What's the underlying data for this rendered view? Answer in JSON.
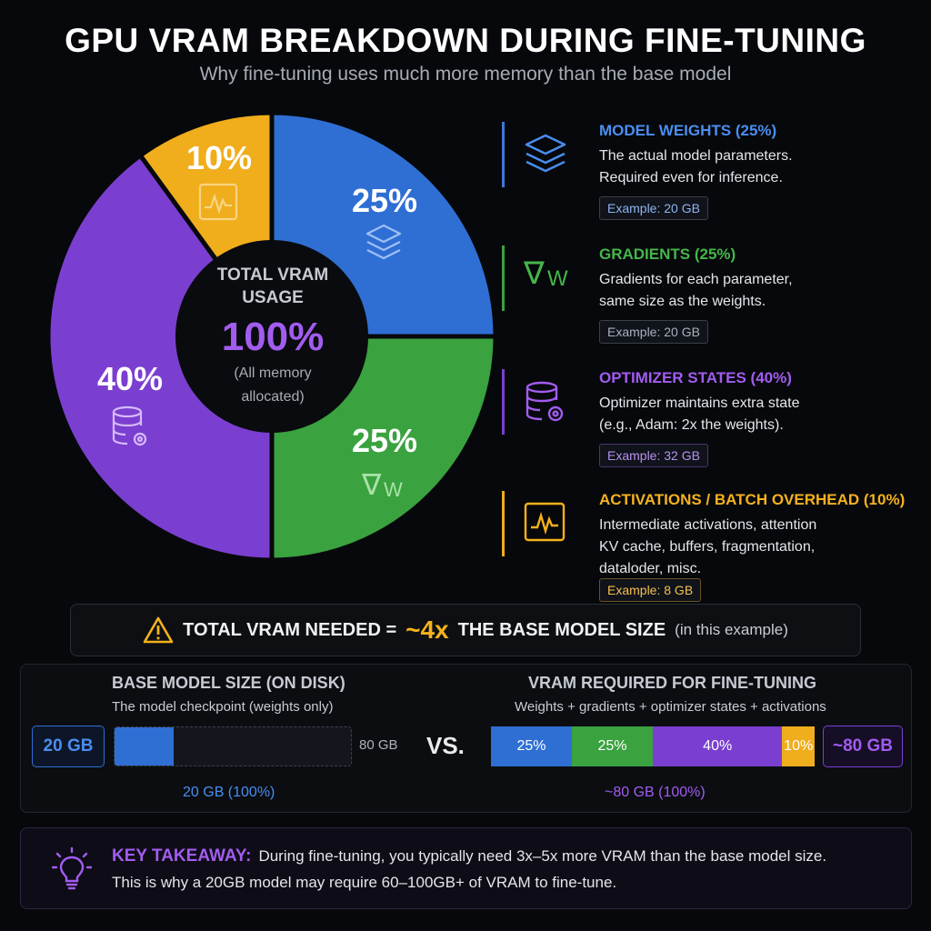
{
  "title": "GPU VRAM BREAKDOWN DURING FINE-TUNING",
  "subtitle": "Why fine-tuning uses much more memory than the base model",
  "center": {
    "title_line1": "TOTAL VRAM",
    "title_line2": "USAGE",
    "value": "100%",
    "note_line1": "(All memory",
    "note_line2": "allocated)"
  },
  "chart_data": {
    "type": "pie",
    "title": "GPU VRAM BREAKDOWN DURING FINE-TUNING",
    "center_total": "100%",
    "slices": [
      {
        "label": "MODEL WEIGHTS",
        "value": 25,
        "display": "25%",
        "color": "#2f6fd4",
        "icon": "layers-icon"
      },
      {
        "label": "GRADIENTS",
        "value": 25,
        "display": "25%",
        "color": "#3aa23f",
        "icon": "gradient-nabla-w-icon"
      },
      {
        "label": "OPTIMIZER STATES",
        "value": 40,
        "display": "40%",
        "color": "#7a3fd0",
        "icon": "database-gear-icon"
      },
      {
        "label": "ACTIVATIONS / BATCH OVERHEAD",
        "value": 10,
        "display": "10%",
        "color": "#f0ad1c",
        "icon": "activation-wave-icon"
      }
    ]
  },
  "legend": [
    {
      "head": "MODEL WEIGHTS (25%)",
      "desc1": "The actual model parameters.",
      "desc2": "Required even for inference.",
      "desc3": "",
      "example": "Example: 20 GB",
      "color": "#4a8ef0",
      "icon": "layers-icon"
    },
    {
      "head": "GRADIENTS (25%)",
      "desc1": "Gradients for each parameter,",
      "desc2": "same size as the weights.",
      "desc3": "",
      "example": "Example: 20 GB",
      "color": "#45b64a",
      "icon": "gradient-nabla-w-icon"
    },
    {
      "head": "OPTIMIZER STATES (40%)",
      "desc1": "Optimizer maintains extra state",
      "desc2": "(e.g., Adam: 2x the weights).",
      "desc3": "",
      "example": "Example: 32 GB",
      "color": "#a25cf0",
      "icon": "database-gear-icon"
    },
    {
      "head": "ACTIVATIONS / BATCH OVERHEAD (10%)",
      "desc1": "Intermediate activations, attention",
      "desc2": "KV cache, buffers, fragmentation,",
      "desc3": "dataloder, misc.",
      "example": "Example: 8 GB",
      "color": "#f5b21c",
      "icon": "activation-wave-icon"
    }
  ],
  "banner": {
    "icon": "warning-icon",
    "prefix": "TOTAL VRAM NEEDED =",
    "accent": "~4x",
    "suffix": "THE BASE MODEL SIZE",
    "note": "(in this example)"
  },
  "comparison": {
    "left": {
      "heading": "BASE MODEL SIZE (ON DISK)",
      "sub": "The model checkpoint (weights only)",
      "box": "20 GB",
      "fill_fraction": 0.25,
      "track_end": "80 GB",
      "footer": "20 GB (100%)"
    },
    "vs": "VS.",
    "right": {
      "heading": "VRAM REQUIRED FOR FINE-TUNING",
      "sub": "Weights + gradients + optimizer states + activations",
      "box": "~80 GB",
      "footer": "~80 GB (100%)",
      "segments": [
        {
          "label": "25%",
          "value": 25,
          "color": "#2f6fd4"
        },
        {
          "label": "25%",
          "value": 25,
          "color": "#3aa23f"
        },
        {
          "label": "40%",
          "value": 40,
          "color": "#7a3fd0"
        },
        {
          "label": "10%",
          "value": 10,
          "color": "#f0ad1c"
        }
      ]
    }
  },
  "takeaway": {
    "icon": "lightbulb-icon",
    "label": "KEY TAKEAWAY:",
    "line1": "During fine-tuning, you typically need 3x–5x more VRAM than the base model size.",
    "line2": "This is why a 20GB model may require 60–100GB+ of VRAM to fine-tune."
  }
}
